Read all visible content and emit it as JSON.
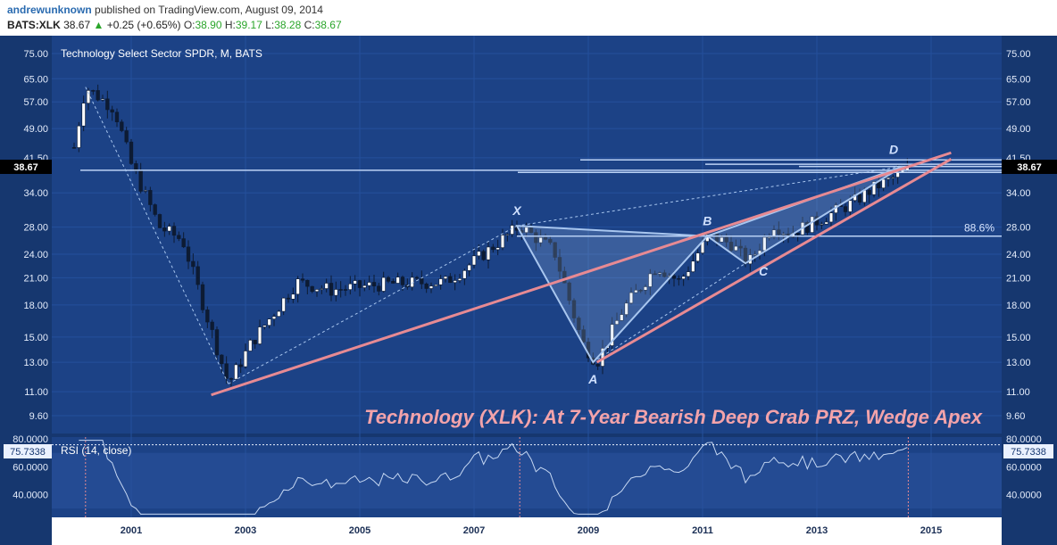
{
  "header": {
    "author": "andrewunknown",
    "published_text": "published on TradingView.com, August 09, 2014",
    "symbol": "BATS:XLK",
    "last": "38.67",
    "up_arrow": "▲",
    "change": "+0.25 (+0.65%)",
    "o_label": "O:",
    "o_value": "38.90",
    "h_label": "H:",
    "h_value": "39.17",
    "l_label": "L:",
    "l_value": "38.28",
    "c_label": "C:",
    "c_value": "38.67"
  },
  "colors": {
    "panel": "#1c4286",
    "panel_alt": "#234b94",
    "candle_up": "#ffffff",
    "candle_down": "#0d1b33",
    "wedge": "#e78a93",
    "pattern": "#a8c6ef",
    "title": "#f3a3aa",
    "rsi": "#c5d7f2"
  },
  "chart_data": {
    "type": "candlestick",
    "title": "Technology Select Sector SPDR, M, BATS",
    "annotation": "Technology (XLK): At 7-Year Bearish Deep Crab PRZ, Wedge Apex",
    "y_ticks": [
      "75.00",
      "65.00",
      "57.00",
      "49.00",
      "41.50",
      "34.00",
      "28.00",
      "24.00",
      "21.00",
      "18.00",
      "15.00",
      "13.00",
      "11.00",
      "9.60"
    ],
    "x_ticks": [
      "2001",
      "2003",
      "2005",
      "2007",
      "2009",
      "2011",
      "2013",
      "2015"
    ],
    "ylim": [
      9.6,
      75
    ],
    "y_scale": "log",
    "last_price_label": "38.67",
    "points": [
      {
        "label": "X",
        "date": "2007-10",
        "price": 28.2
      },
      {
        "label": "A",
        "date": "2009-02",
        "price": 13.0
      },
      {
        "label": "B",
        "date": "2011-02",
        "price": 26.6
      },
      {
        "label": "C",
        "date": "2011-10",
        "price": 22.8
      },
      {
        "label": "D",
        "date": "2014-07",
        "price": 39.5
      }
    ],
    "fib_label": "88.6%",
    "fib_level": 26.6,
    "rsi": {
      "label": "RSI (14, close)",
      "value_label": "75.7338",
      "y_ticks": [
        "80.0000",
        "60.0000",
        "40.0000"
      ],
      "ylim": [
        25,
        80
      ]
    }
  }
}
